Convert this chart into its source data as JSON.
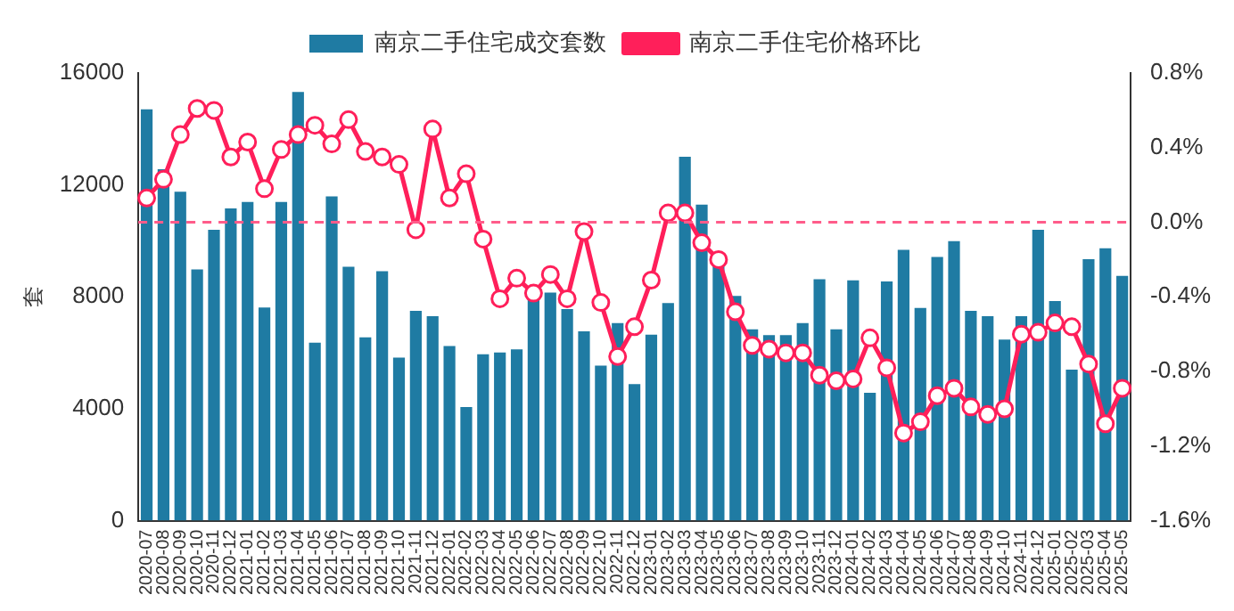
{
  "chart_data": {
    "type": "bar",
    "ylabel": "套",
    "categories": [
      "2020-07",
      "2020-08",
      "2020-09",
      "2020-10",
      "2020-11",
      "2020-12",
      "2021-01",
      "2021-02",
      "2021-03",
      "2021-04",
      "2021-05",
      "2021-06",
      "2021-07",
      "2021-08",
      "2021-09",
      "2021-10",
      "2021-11",
      "2021-12",
      "2022-01",
      "2022-02",
      "2022-03",
      "2022-04",
      "2022-05",
      "2022-06",
      "2022-07",
      "2022-08",
      "2022-09",
      "2022-10",
      "2022-11",
      "2022-12",
      "2023-01",
      "2023-02",
      "2023-03",
      "2023-04",
      "2023-05",
      "2023-06",
      "2023-07",
      "2023-08",
      "2023-09",
      "2023-10",
      "2023-11",
      "2023-12",
      "2024-01",
      "2024-02",
      "2024-03",
      "2024-04",
      "2024-05",
      "2024-06",
      "2024-07",
      "2024-08",
      "2024-09",
      "2024-10",
      "2024-11",
      "2024-12",
      "2025-01",
      "2025-02",
      "2025-03",
      "2025-04",
      "2025-05"
    ],
    "series": [
      {
        "name": "南京二手住宅成交套数",
        "color": "#1f7ba3",
        "values": [
          14700,
          12560,
          11760,
          8980,
          10400,
          11160,
          11390,
          7620,
          11390,
          15320,
          6360,
          11590,
          9080,
          6550,
          8920,
          5830,
          7500,
          7310,
          6240,
          4060,
          5950,
          6010,
          6120,
          7900,
          8150,
          7560,
          6770,
          5540,
          7060,
          4880,
          6650,
          7780,
          13010,
          11300,
          9100,
          8030,
          6840,
          6630,
          6630,
          7060,
          8630,
          6840,
          8590,
          4570,
          8550,
          9680,
          7600,
          9430,
          9990,
          7500,
          7310,
          6470,
          7310,
          10400,
          7850,
          5400,
          9350,
          9740,
          8750
        ]
      },
      {
        "name": "南京二手住宅价格环比",
        "type": "line",
        "axis": "y2",
        "color": "#ff1f5a",
        "marker": "circle",
        "values": [
          0.13,
          0.23,
          0.47,
          0.61,
          0.6,
          0.35,
          0.43,
          0.18,
          0.39,
          0.47,
          0.52,
          0.42,
          0.55,
          0.38,
          0.35,
          0.31,
          -0.04,
          0.5,
          0.13,
          0.26,
          -0.09,
          -0.41,
          -0.3,
          -0.38,
          -0.28,
          -0.41,
          -0.05,
          -0.43,
          -0.72,
          -0.56,
          -0.31,
          0.05,
          0.05,
          -0.11,
          -0.2,
          -0.48,
          -0.66,
          -0.68,
          -0.7,
          -0.7,
          -0.82,
          -0.85,
          -0.84,
          -0.62,
          -0.78,
          -1.13,
          -1.07,
          -0.93,
          -0.89,
          -0.99,
          -1.03,
          -1.0,
          -0.6,
          -0.59,
          -0.54,
          -0.56,
          -0.76,
          -1.08,
          -0.89
        ]
      }
    ],
    "ylim": [
      0,
      16000
    ],
    "yticks": [
      0,
      4000,
      8000,
      12000,
      16000
    ],
    "y2lim": [
      -1.6,
      0.8
    ],
    "y2ticks": [
      {
        "value": 0.8,
        "label": "0.8%"
      },
      {
        "value": 0.4,
        "label": "0.4%"
      },
      {
        "value": 0,
        "label": "0.0%"
      },
      {
        "value": -0.4,
        "label": "-0.4%"
      },
      {
        "value": -0.8,
        "label": "-0.8%"
      },
      {
        "value": -1.2,
        "label": "-1.2%"
      },
      {
        "value": -1.6,
        "label": "-1.6%"
      }
    ],
    "ref_lines": [
      {
        "axis": "y2",
        "value": 0,
        "color": "#ff5c8a",
        "line_style": "dashed"
      }
    ],
    "grid": false,
    "legend": "top"
  }
}
